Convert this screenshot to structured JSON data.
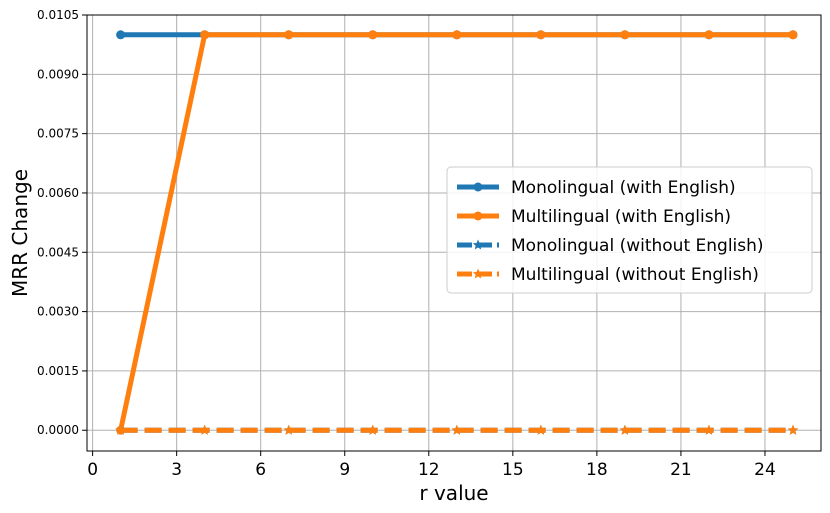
{
  "chart_data": {
    "type": "line",
    "title": "",
    "xlabel": "r value",
    "ylabel": "MRR Change",
    "xlim": [
      -0.2,
      26.0
    ],
    "ylim": [
      -0.000525,
      0.0105
    ],
    "x_ticks": [
      0,
      3,
      6,
      9,
      12,
      15,
      18,
      21,
      24
    ],
    "x_tick_labels": [
      "0",
      "3",
      "6",
      "9",
      "12",
      "15",
      "18",
      "21",
      "24"
    ],
    "y_ticks": [
      0.0,
      0.0015,
      0.003,
      0.0045,
      0.006,
      0.0075,
      0.009,
      0.0105
    ],
    "y_tick_labels": [
      "0.0000",
      "0.0015",
      "0.0030",
      "0.0045",
      "0.0060",
      "0.0075",
      "0.0090",
      "0.0105"
    ],
    "grid": true,
    "legend_position": "center-right",
    "series": [
      {
        "name": "Monolingual (with English)",
        "color": "#1f77b4",
        "line_style": "solid",
        "marker": "circle",
        "x": [
          1,
          4,
          7,
          10,
          13,
          16,
          19,
          22,
          25
        ],
        "y": [
          0.01,
          0.01,
          0.01,
          0.01,
          0.01,
          0.01,
          0.01,
          0.01,
          0.01
        ]
      },
      {
        "name": "Multilingual (with English)",
        "color": "#ff7f0e",
        "line_style": "solid",
        "marker": "circle",
        "x": [
          1,
          4,
          7,
          10,
          13,
          16,
          19,
          22,
          25
        ],
        "y": [
          0.0,
          0.01,
          0.01,
          0.01,
          0.01,
          0.01,
          0.01,
          0.01,
          0.01
        ]
      },
      {
        "name": "Monolingual (without English)",
        "color": "#1f77b4",
        "line_style": "dashed",
        "marker": "star",
        "x": [
          1,
          4,
          7,
          10,
          13,
          16,
          19,
          22,
          25
        ],
        "y": [
          0.0,
          0.0,
          0.0,
          0.0,
          0.0,
          0.0,
          0.0,
          0.0,
          0.0
        ]
      },
      {
        "name": "Multilingual (without English)",
        "color": "#ff7f0e",
        "line_style": "dashed",
        "marker": "star",
        "x": [
          1,
          4,
          7,
          10,
          13,
          16,
          19,
          22,
          25
        ],
        "y": [
          0.0,
          0.0,
          0.0,
          0.0,
          0.0,
          0.0,
          0.0,
          0.0,
          0.0
        ]
      }
    ]
  }
}
